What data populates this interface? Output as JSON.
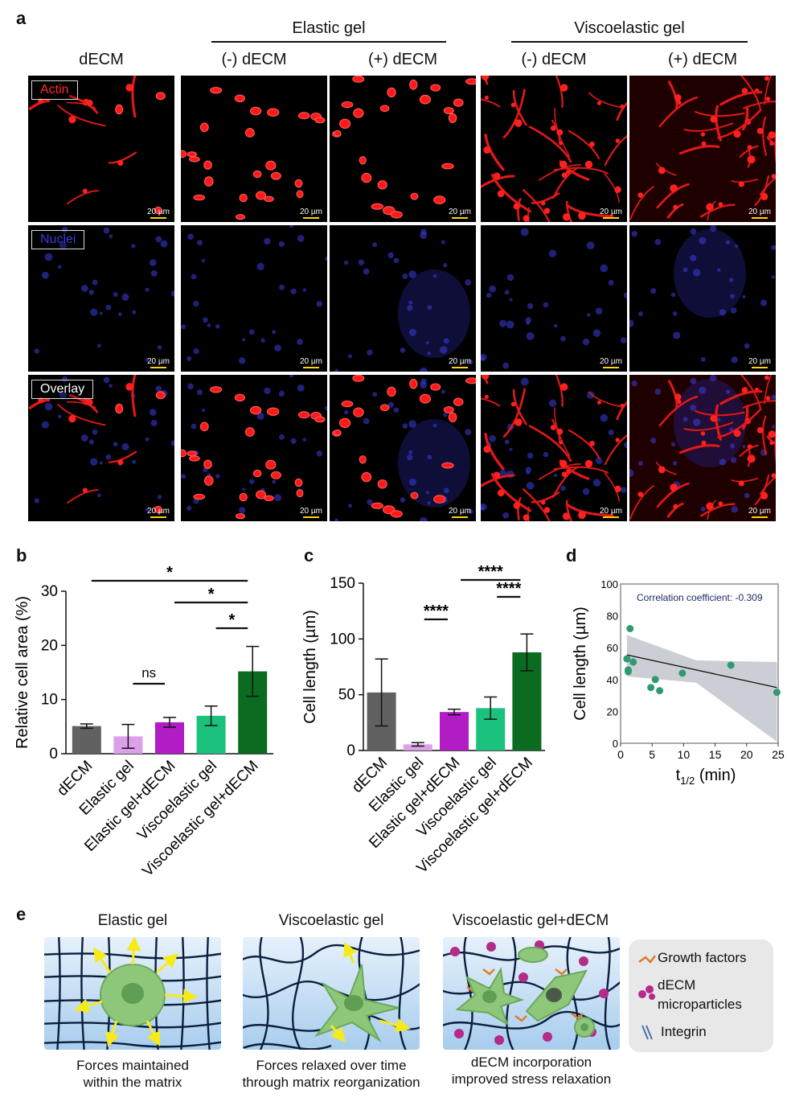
{
  "panel_a": {
    "label": "a",
    "group_headers": [
      "Elastic gel",
      "Viscoelastic gel"
    ],
    "column_headers": [
      "dECM",
      "(-) dECM",
      "(+) dECM",
      "(-) dECM",
      "(+) dECM"
    ],
    "row_labels": [
      "Actin",
      "Nuclei",
      "Overlay"
    ],
    "scale_bar": "20 µm"
  },
  "panel_b": {
    "label": "b",
    "chart_data": {
      "type": "bar",
      "ylabel": "Relative cell area (%)",
      "categories": [
        "dECM",
        "Elastic gel",
        "Elastic gel+dECM",
        "Viscoelastic gel",
        "Viscoelastic gel+dECM"
      ],
      "values": [
        5.1,
        3.2,
        5.8,
        7.0,
        15.2
      ],
      "errors": [
        0.4,
        2.2,
        0.9,
        1.8,
        4.6
      ],
      "colors": [
        "#616161",
        "#dca0ea",
        "#b21cc4",
        "#1bc27e",
        "#0b6b21"
      ],
      "ylim": [
        0,
        30
      ],
      "yticks": [
        0,
        10,
        20,
        30
      ],
      "significance": [
        {
          "from": 0,
          "to": 4,
          "label": "*"
        },
        {
          "from": 2,
          "to": 4,
          "label": "*"
        },
        {
          "from": 3,
          "to": 4,
          "label": "*"
        },
        {
          "from": 1,
          "to": 2,
          "label": "ns"
        }
      ]
    }
  },
  "panel_c": {
    "label": "c",
    "chart_data": {
      "type": "bar",
      "ylabel": "Cell length (µm)",
      "categories": [
        "dECM",
        "Elastic gel",
        "Elastic gel+dECM",
        "Viscoelastic gel",
        "Viscoelastic gel+dECM"
      ],
      "values": [
        52,
        5.5,
        34.5,
        38,
        88
      ],
      "errors": [
        30,
        1.5,
        2.5,
        10,
        16.5
      ],
      "colors": [
        "#616161",
        "#dca0ea",
        "#b21cc4",
        "#1bc27e",
        "#0b6b21"
      ],
      "ylim": [
        0,
        150
      ],
      "yticks": [
        0,
        50,
        100,
        150
      ],
      "significance": [
        {
          "from": 1,
          "to": 2,
          "label": "****"
        },
        {
          "from": 3,
          "to": 4,
          "label": "****"
        },
        {
          "from": 2,
          "to": 4,
          "label": "****"
        }
      ]
    }
  },
  "panel_d": {
    "label": "d",
    "chart_data": {
      "type": "scatter",
      "xlabel_main": "t",
      "xlabel_sub": "1/2",
      "xlabel_unit": "(min)",
      "ylabel": "Cell length (µm)",
      "annotation": "Correlation coefficient: -0.309",
      "xlim": [
        0,
        25
      ],
      "ylim": [
        0,
        100
      ],
      "xticks": [
        0,
        5,
        10,
        15,
        20,
        25
      ],
      "yticks": [
        0,
        20,
        40,
        60,
        80,
        100
      ],
      "points": [
        {
          "x": 1.0,
          "y": 53
        },
        {
          "x": 1.2,
          "y": 46
        },
        {
          "x": 1.2,
          "y": 45
        },
        {
          "x": 1.5,
          "y": 72
        },
        {
          "x": 2.0,
          "y": 51
        },
        {
          "x": 4.8,
          "y": 35
        },
        {
          "x": 5.5,
          "y": 40
        },
        {
          "x": 6.2,
          "y": 33
        },
        {
          "x": 9.8,
          "y": 44
        },
        {
          "x": 17.5,
          "y": 49
        },
        {
          "x": 24.8,
          "y": 32
        }
      ],
      "fit_line": [
        {
          "x": 1.0,
          "y": 55.5
        },
        {
          "x": 24.8,
          "y": 35
        }
      ],
      "band_upper": [
        {
          "x": 1.0,
          "y": 68
        },
        {
          "x": 12.0,
          "y": 52
        },
        {
          "x": 24.8,
          "y": 51
        }
      ],
      "band_lower": [
        {
          "x": 1.0,
          "y": 42
        },
        {
          "x": 12.0,
          "y": 38
        },
        {
          "x": 24.8,
          "y": 1
        }
      ],
      "point_color": "#2e9a70",
      "band_color": "#b0b3bf"
    }
  },
  "panel_e": {
    "label": "e",
    "titles": [
      "Elastic gel",
      "Viscoelastic gel",
      "Viscoelastic gel+dECM"
    ],
    "captions": [
      [
        "Forces maintained",
        "within the matrix"
      ],
      [
        "Forces relaxed over time",
        "through matrix reorganization"
      ],
      [
        "dECM incorporation",
        "improved stress relaxation"
      ]
    ],
    "legend": [
      "Growth factors",
      "dECM",
      "microparticles",
      "Integrin"
    ]
  }
}
